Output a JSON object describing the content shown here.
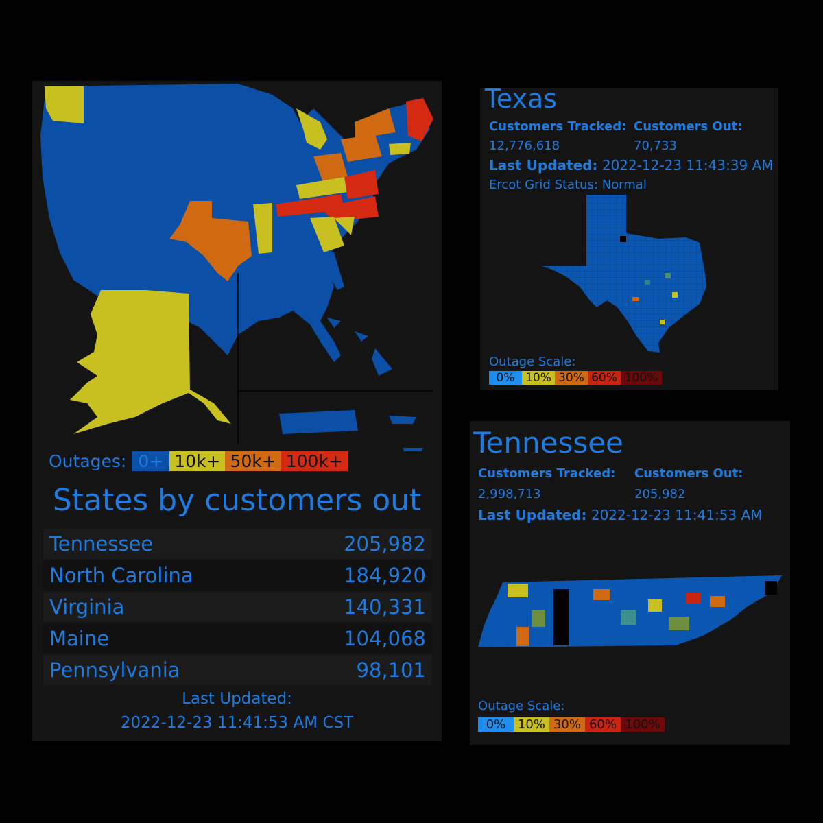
{
  "colors": {
    "zero": "#0b4fa6",
    "tenk": "#c8c020",
    "fiftyk": "#cf6a12",
    "hundredk": "#d42a12",
    "text": "#1e7be0",
    "panel": "#141414"
  },
  "us": {
    "outages_label": "Outages:",
    "legend": [
      {
        "label": "0+",
        "color": "#0b4fa6"
      },
      {
        "label": "10k+",
        "color": "#c8c020"
      },
      {
        "label": "50k+",
        "color": "#cf6a12"
      },
      {
        "label": "100k+",
        "color": "#d42a12"
      }
    ],
    "heading": "States by customers out",
    "rows": [
      {
        "state": "Tennessee",
        "out": "205,982"
      },
      {
        "state": "North Carolina",
        "out": "184,920"
      },
      {
        "state": "Virginia",
        "out": "140,331"
      },
      {
        "state": "Maine",
        "out": "104,068"
      },
      {
        "state": "Pennsylvania",
        "out": "98,101"
      }
    ],
    "last_updated_label": "Last Updated:",
    "last_updated_value": "2022-12-23 11:41:53 AM CST"
  },
  "texas": {
    "title": "Texas",
    "tracked_label": "Customers Tracked:",
    "tracked_value": "12,776,618",
    "out_label": "Customers Out:",
    "out_value": "70,733",
    "updated_label": "Last Updated:",
    "updated_value": "2022-12-23 11:43:39 AM",
    "grid_status": "Ercot Grid Status: Normal",
    "scale_label": "Outage Scale:",
    "scale": [
      {
        "label": "0%",
        "color": "#1e8ef0"
      },
      {
        "label": "10%",
        "color": "#c8c020"
      },
      {
        "label": "30%",
        "color": "#cf6a12"
      },
      {
        "label": "60%",
        "color": "#c8240f"
      },
      {
        "label": "100%",
        "color": "#6a0a0a"
      }
    ]
  },
  "tennessee": {
    "title": "Tennessee",
    "tracked_label": "Customers Tracked:",
    "tracked_value": "2,998,713",
    "out_label": "Customers Out:",
    "out_value": "205,982",
    "updated_label": "Last Updated:",
    "updated_value": "2022-12-23 11:41:53 AM",
    "scale_label": "Outage Scale:",
    "scale": [
      {
        "label": "0%",
        "color": "#1e8ef0"
      },
      {
        "label": "10%",
        "color": "#c8c020"
      },
      {
        "label": "30%",
        "color": "#cf6a12"
      },
      {
        "label": "60%",
        "color": "#c8240f"
      },
      {
        "label": "100%",
        "color": "#6a0a0a"
      }
    ]
  }
}
